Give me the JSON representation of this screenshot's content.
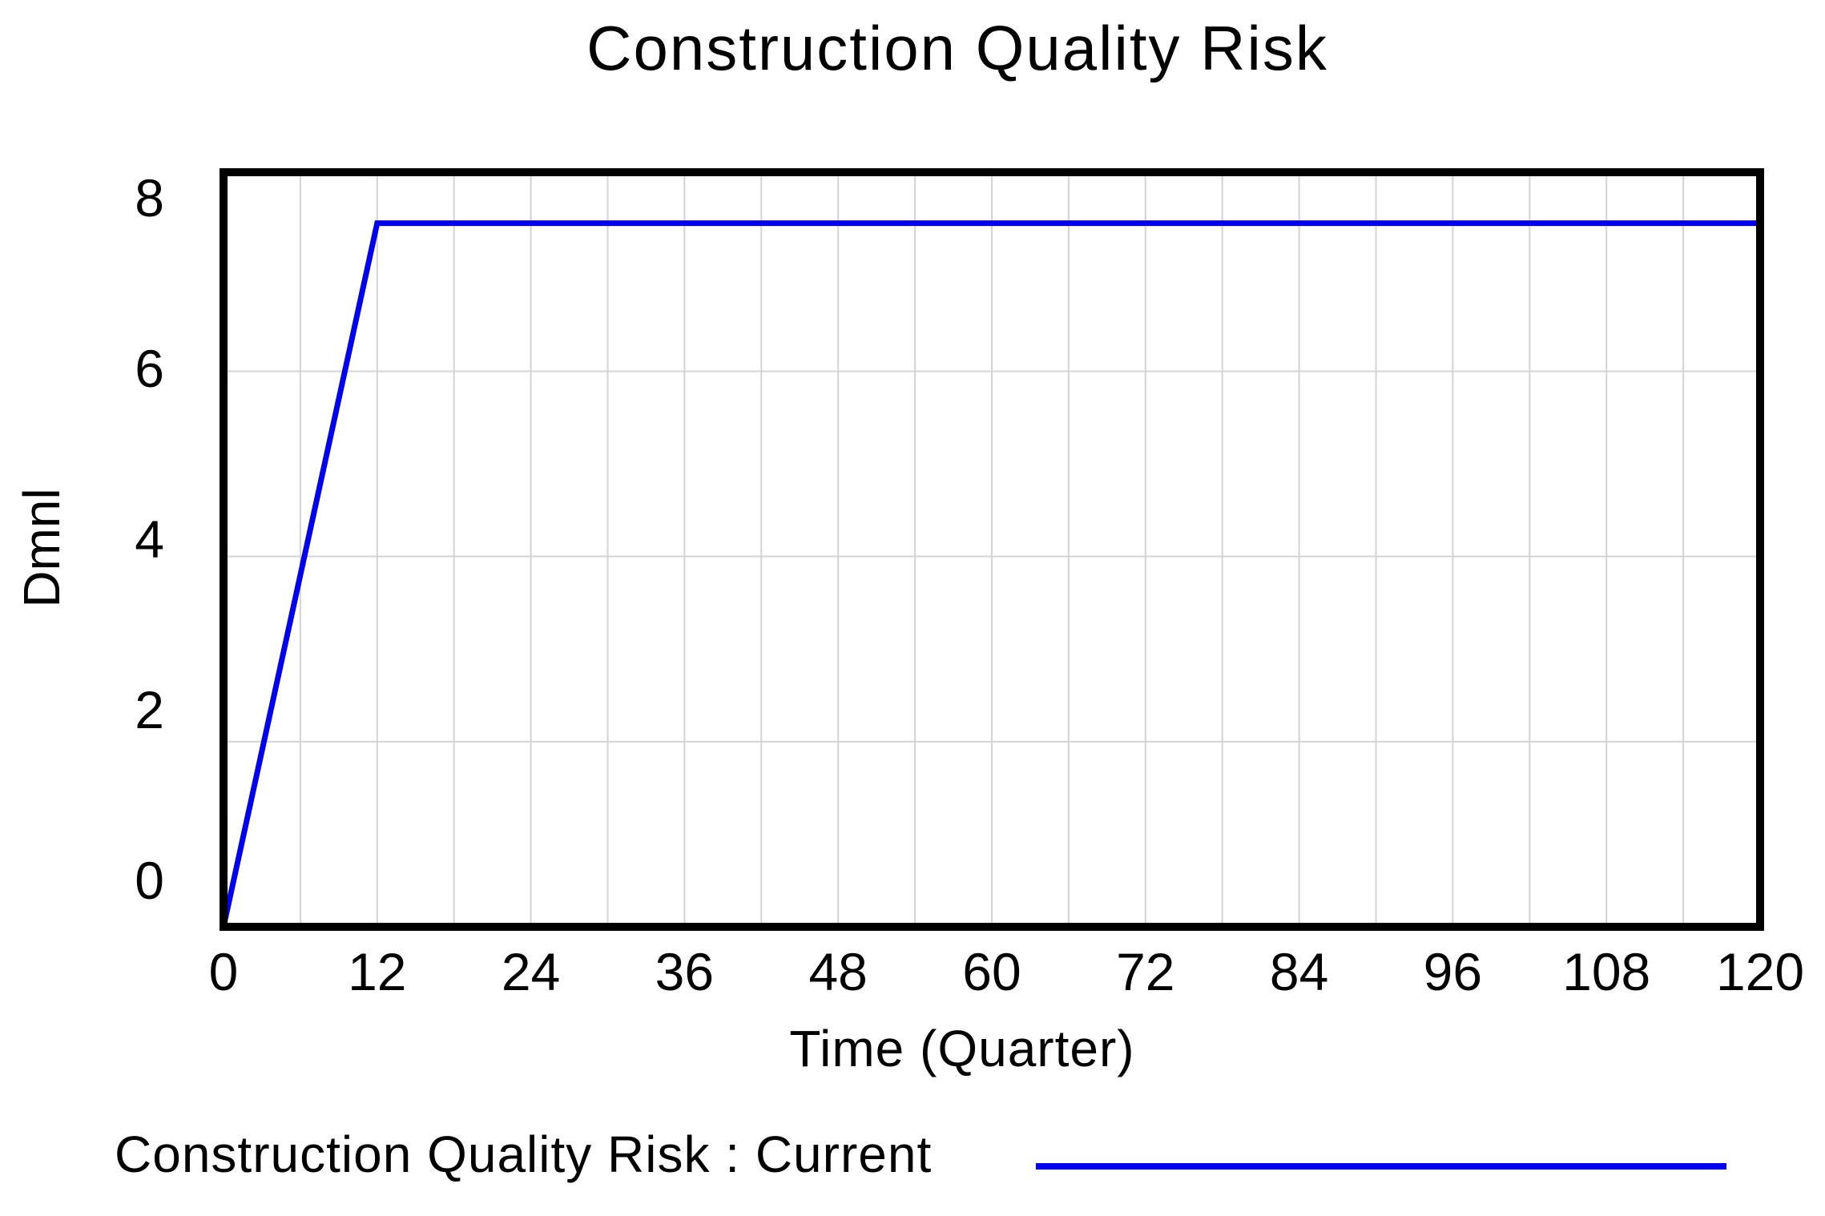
{
  "title": "Construction Quality Risk",
  "chart_data": {
    "type": "line",
    "title": "Construction Quality Risk",
    "xlabel": "Time (Quarter)",
    "ylabel": "Dmnl",
    "x_ticks": [
      0,
      12,
      24,
      36,
      48,
      60,
      72,
      84,
      96,
      108,
      120
    ],
    "y_ticks": [
      0,
      2,
      4,
      6,
      8
    ],
    "xlim": [
      0,
      120
    ],
    "ylim": [
      0,
      8.15
    ],
    "x_minor_grid_step": 6,
    "y_grid_values": [
      2,
      4,
      6
    ],
    "grid": true,
    "frame_color": "#000000",
    "grid_color": "#D3D3D3",
    "legend_position": "bottom-left",
    "series": [
      {
        "name": "Construction Quality Risk : Current",
        "color": "#0000EE",
        "points": [
          [
            0,
            0
          ],
          [
            12,
            7.6
          ],
          [
            120,
            7.6
          ]
        ]
      }
    ]
  },
  "legend": {
    "label": "Construction Quality Risk : Current"
  }
}
